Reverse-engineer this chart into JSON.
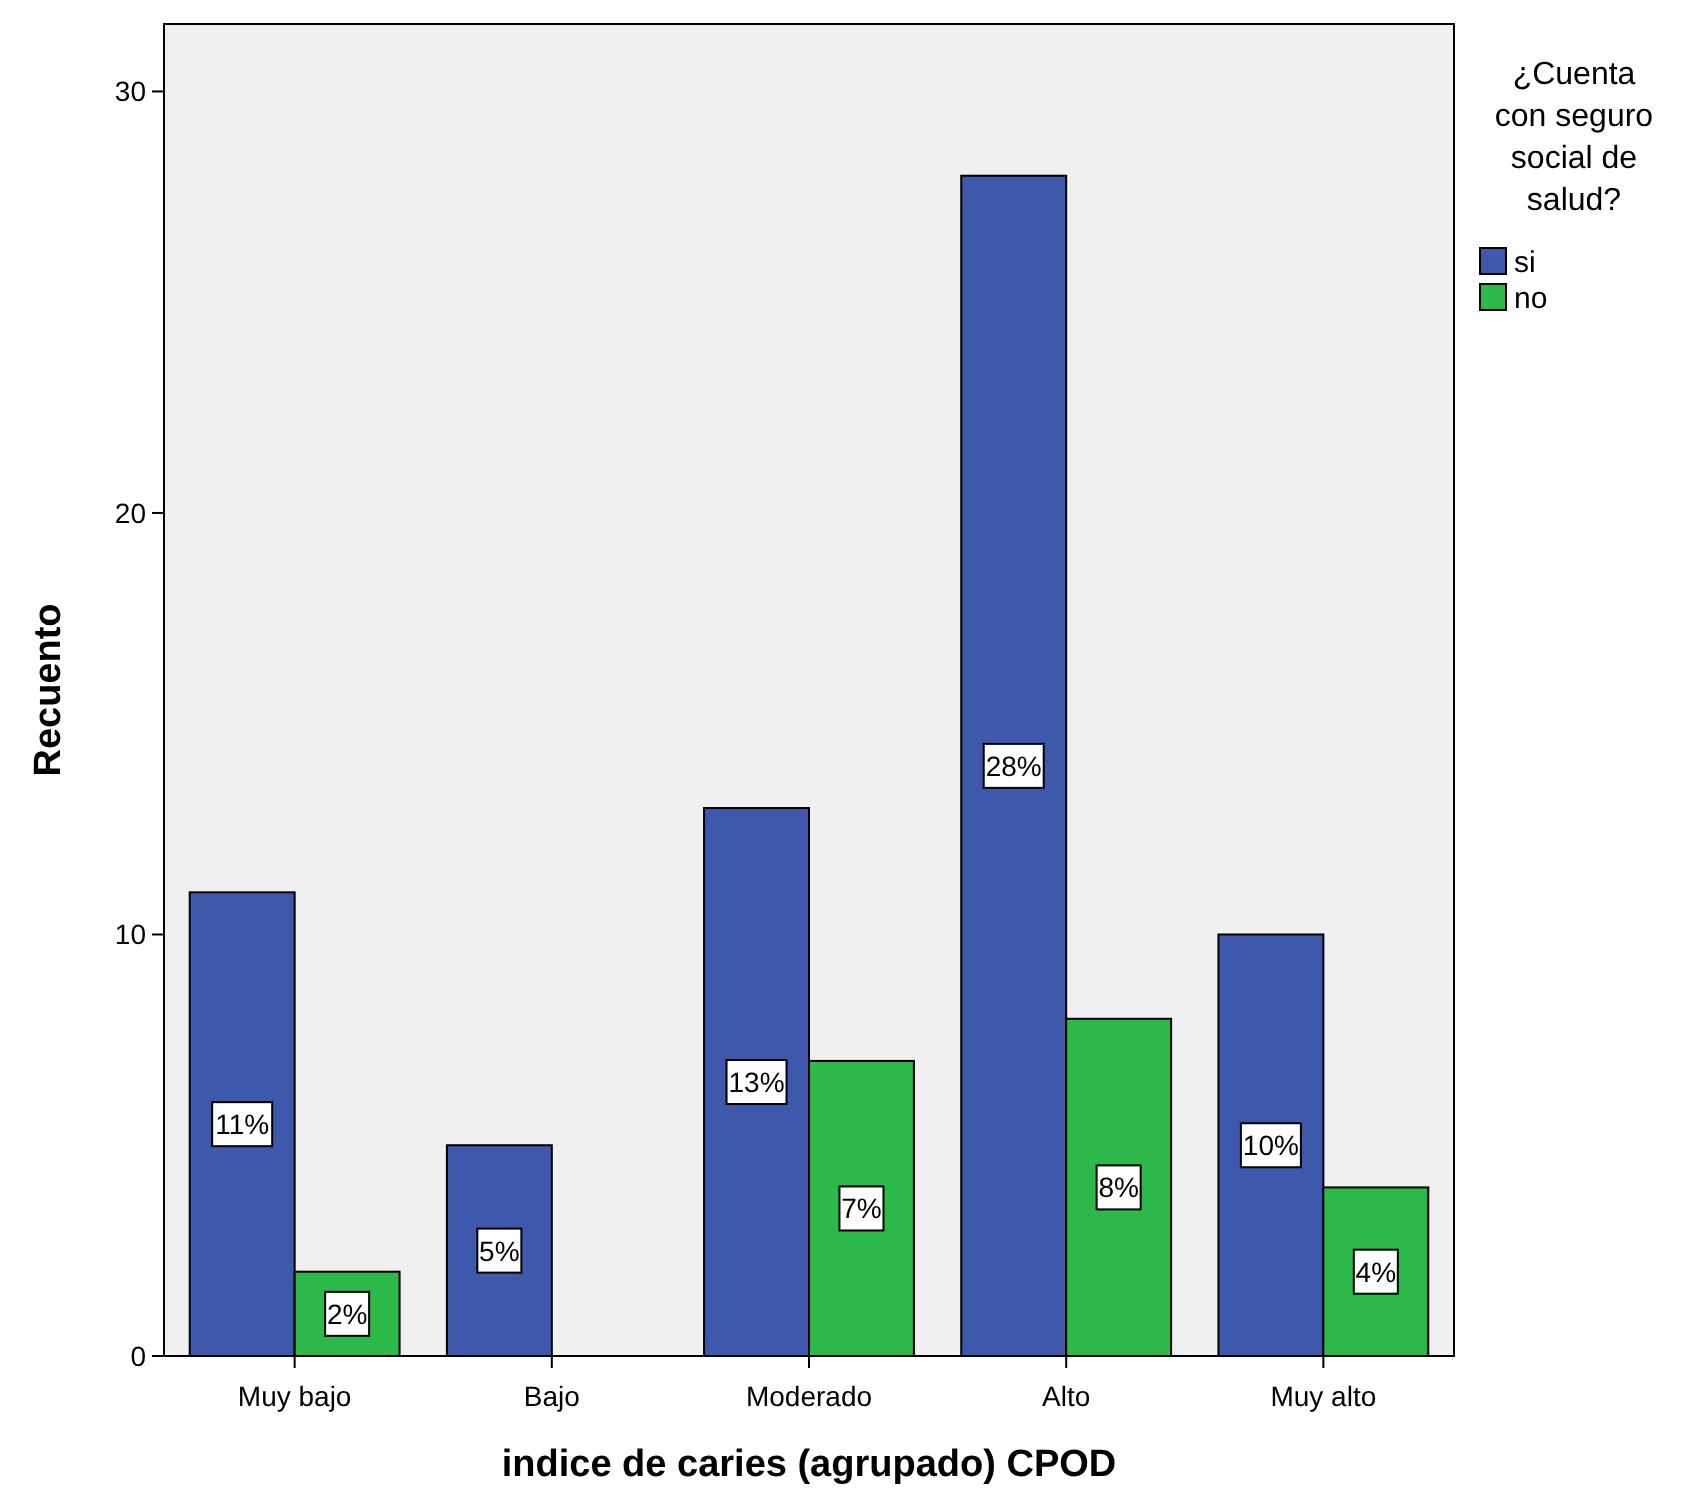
{
  "chart_data": {
    "type": "bar",
    "xlabel": "indice de caries (agrupado) CPOD",
    "ylabel": "Recuento",
    "legend_title": "¿Cuenta con seguro social de salud?",
    "categories": [
      "Muy bajo",
      "Bajo",
      "Moderado",
      "Alto",
      "Muy alto"
    ],
    "series": [
      {
        "name": "si",
        "color": "#3e58ac",
        "values": [
          11,
          5,
          13,
          28,
          10
        ],
        "value_labels": [
          "11%",
          "5%",
          "13%",
          "28%",
          "10%"
        ]
      },
      {
        "name": "no",
        "color": "#2db84a",
        "values": [
          2,
          null,
          7,
          8,
          4
        ],
        "value_labels": [
          "2%",
          null,
          "7%",
          "8%",
          "4%"
        ]
      }
    ],
    "ylim": [
      0,
      31.6
    ],
    "yticks": [
      0,
      10,
      20,
      30
    ],
    "grid": false,
    "legend": "top right"
  }
}
